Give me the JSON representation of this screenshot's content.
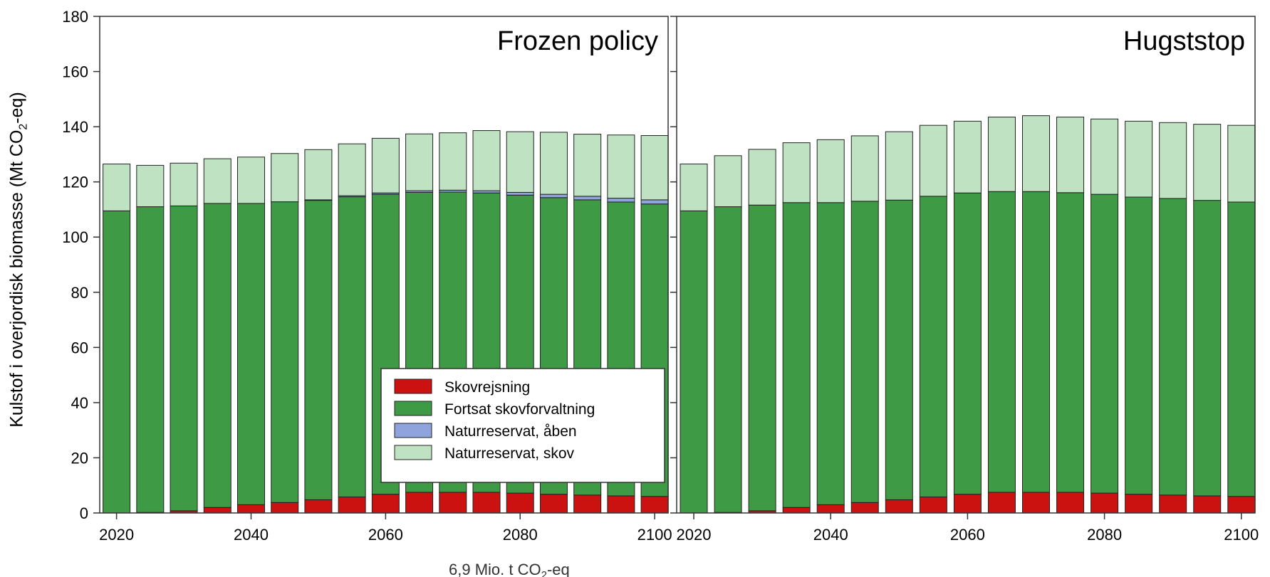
{
  "chart_data": {
    "type": "bar",
    "ylabel_main": "Kulstof i overjordisk biomasse (Mt CO",
    "ylabel_sub": "2",
    "ylabel_end": "-eq)",
    "ylim": [
      0,
      180
    ],
    "yticks": [
      0,
      20,
      40,
      60,
      80,
      100,
      120,
      140,
      160,
      180
    ],
    "xticks": [
      2020,
      2040,
      2060,
      2080,
      2100
    ],
    "categories": [
      2020,
      2025,
      2030,
      2035,
      2040,
      2045,
      2050,
      2055,
      2060,
      2065,
      2070,
      2075,
      2080,
      2085,
      2090,
      2095,
      2100
    ],
    "stack_colors": [
      "#cc1111",
      "#3f9a45",
      "#8fa3dc",
      "#bfe3c2"
    ],
    "legend": [
      "Skovrejsning",
      "Fortsat skovforvaltning",
      "Naturreservat, åben",
      "Naturreservat, skov"
    ],
    "legend_position": "bottom-right of left panel",
    "panels": [
      {
        "title": "Frozen policy",
        "series": [
          {
            "name": "Skovrejsning",
            "values": [
              0,
              0.2,
              0.8,
              2,
              3,
              3.8,
              4.8,
              5.8,
              6.8,
              7.5,
              7.5,
              7.5,
              7.2,
              6.8,
              6.5,
              6.2,
              6
            ]
          },
          {
            "name": "Fortsat skovforvaltning",
            "values": [
              109.5,
              110.8,
              110.5,
              110.2,
              109.2,
              109,
              108.5,
              108.8,
              108.7,
              108.7,
              108.8,
              108.5,
              108,
              107.5,
              107,
              106.5,
              106
            ]
          },
          {
            "name": "Naturreservat, åben",
            "values": [
              0,
              0,
              0,
              0,
              0,
              0,
              0.2,
              0.4,
              0.5,
              0.6,
              0.7,
              0.8,
              1,
              1.2,
              1.3,
              1.4,
              1.5
            ]
          },
          {
            "name": "Naturreservat, skov",
            "values": [
              17,
              15,
              15.5,
              16.2,
              16.8,
              17.5,
              18.2,
              18.8,
              19.8,
              20.6,
              20.8,
              21.8,
              22,
              22.5,
              22.5,
              22.9,
              23.3
            ]
          }
        ]
      },
      {
        "title": "Hugststop",
        "series": [
          {
            "name": "Skovrejsning",
            "values": [
              0,
              0.2,
              0.8,
              2,
              3,
              3.8,
              4.8,
              5.8,
              6.8,
              7.5,
              7.5,
              7.5,
              7.2,
              6.8,
              6.5,
              6.2,
              6
            ]
          },
          {
            "name": "Fortsat skovforvaltning",
            "values": [
              109.5,
              110.8,
              110.8,
              110.5,
              109.5,
              109.2,
              108.6,
              109,
              109.2,
              109,
              109,
              108.6,
              108.3,
              107.7,
              107.5,
              107.1,
              106.7
            ]
          },
          {
            "name": "Naturreservat, åben",
            "values": [
              0,
              0,
              0,
              0,
              0,
              0,
              0,
              0,
              0,
              0,
              0,
              0,
              0,
              0,
              0,
              0,
              0
            ]
          },
          {
            "name": "Naturreservat, skov",
            "values": [
              17,
              18.5,
              20.2,
              21.7,
              22.8,
              23.7,
              24.8,
              25.7,
              26,
              27,
              27.5,
              27.4,
              27.3,
              27.5,
              27.5,
              27.6,
              27.8
            ]
          }
        ]
      }
    ]
  },
  "overlay_text": "6,9 Mio. t CO",
  "overlay_sub": "2",
  "overlay_end": "-eq"
}
